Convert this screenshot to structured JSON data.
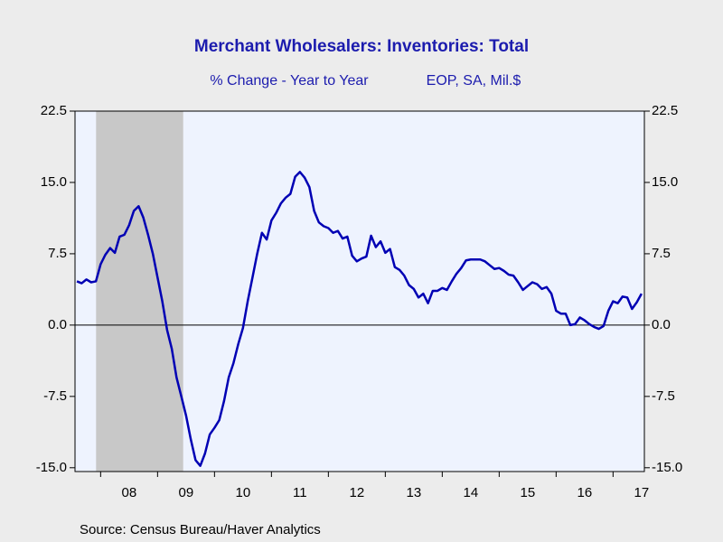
{
  "chart_data": {
    "type": "line",
    "title": "Merchant Wholesalers: Inventories: Total",
    "subtitle": [
      "% Change - Year to Year",
      "EOP, SA, Mil.$"
    ],
    "source": "Source:  Census Bureau/Haver Analytics",
    "x": [
      2007.583,
      2007.667,
      2007.75,
      2007.833,
      2007.917,
      2008,
      2008.083,
      2008.167,
      2008.25,
      2008.333,
      2008.417,
      2008.5,
      2008.583,
      2008.667,
      2008.75,
      2008.833,
      2008.917,
      2009,
      2009.083,
      2009.167,
      2009.25,
      2009.333,
      2009.417,
      2009.5,
      2009.583,
      2009.667,
      2009.75,
      2009.833,
      2009.917,
      2010,
      2010.083,
      2010.167,
      2010.25,
      2010.333,
      2010.417,
      2010.5,
      2010.583,
      2010.667,
      2010.75,
      2010.833,
      2010.917,
      2011,
      2011.083,
      2011.167,
      2011.25,
      2011.333,
      2011.417,
      2011.5,
      2011.583,
      2011.667,
      2011.75,
      2011.833,
      2011.917,
      2012,
      2012.083,
      2012.167,
      2012.25,
      2012.333,
      2012.417,
      2012.5,
      2012.583,
      2012.667,
      2012.75,
      2012.833,
      2012.917,
      2013,
      2013.083,
      2013.167,
      2013.25,
      2013.333,
      2013.417,
      2013.5,
      2013.583,
      2013.667,
      2013.75,
      2013.833,
      2013.917,
      2014,
      2014.083,
      2014.167,
      2014.25,
      2014.333,
      2014.417,
      2014.5,
      2014.583,
      2014.667,
      2014.75,
      2014.833,
      2014.917,
      2015,
      2015.083,
      2015.167,
      2015.25,
      2015.333,
      2015.417,
      2015.5,
      2015.583,
      2015.667,
      2015.75,
      2015.833,
      2015.917,
      2016,
      2016.083,
      2016.167,
      2016.25,
      2016.333,
      2016.417,
      2016.5,
      2016.583,
      2016.667,
      2016.75,
      2016.833,
      2016.917,
      2017,
      2017.083,
      2017.167,
      2017.25,
      2017.333,
      2017.417,
      2017.5
    ],
    "series": [
      {
        "color": "#0000b4",
        "values": [
          4.6,
          4.4,
          4.8,
          4.5,
          4.6,
          6.4,
          7.4,
          8.1,
          7.6,
          9.3,
          9.5,
          10.5,
          12.0,
          12.5,
          11.3,
          9.5,
          7.5,
          5.0,
          2.5,
          -0.5,
          -2.5,
          -5.5,
          -7.5,
          -9.5,
          -12,
          -14.2,
          -14.8,
          -13.5,
          -11.5,
          -10.8,
          -10,
          -8,
          -5.5,
          -4,
          -2,
          -0.3,
          2.5,
          5,
          7.5,
          9.7,
          9.0,
          11,
          11.8,
          12.8,
          13.4,
          13.8,
          15.6,
          16.1,
          15.5,
          14.5,
          12,
          10.8,
          10.4,
          10.2,
          9.7,
          9.9,
          9.1,
          9.3,
          7.3,
          6.7,
          7,
          7.2,
          9.4,
          8.2,
          8.8,
          7.6,
          8,
          6.1,
          5.8,
          5.2,
          4.2,
          3.8,
          2.9,
          3.3,
          2.3,
          3.6,
          3.6,
          3.9,
          3.7,
          4.6,
          5.4,
          6.0,
          6.8,
          6.9,
          6.9,
          6.9,
          6.7,
          6.3,
          5.9,
          6.0,
          5.7,
          5.3,
          5.2,
          4.5,
          3.7,
          4.1,
          4.5,
          4.3,
          3.8,
          4.0,
          3.3,
          1.5,
          1.2,
          1.2,
          0.0,
          0.1,
          0.8,
          0.5,
          0.1,
          -0.2,
          -0.4,
          -0.1,
          1.5,
          2.5,
          2.3,
          3.0,
          2.9,
          1.7,
          2.4,
          3.3
        ]
      }
    ],
    "xlim": [
      2007.55,
      2017.55
    ],
    "xticks": [
      {
        "value": 2008.5,
        "label": "08"
      },
      {
        "value": 2009.5,
        "label": "09"
      },
      {
        "value": 2010.5,
        "label": "10"
      },
      {
        "value": 2011.5,
        "label": "11"
      },
      {
        "value": 2012.5,
        "label": "12"
      },
      {
        "value": 2013.5,
        "label": "13"
      },
      {
        "value": 2014.5,
        "label": "14"
      },
      {
        "value": 2015.5,
        "label": "15"
      },
      {
        "value": 2016.5,
        "label": "16"
      },
      {
        "value": 2017.5,
        "label": "17"
      }
    ],
    "ylim": [
      -15.4,
      22.5
    ],
    "yticks": [
      22.5,
      {
        "value": 15,
        "label": "15.0"
      },
      7.5,
      {
        "value": 0,
        "label": "0.0"
      },
      -7.5,
      {
        "value": -15,
        "label": "-15.0"
      }
    ],
    "recession": [
      2007.92,
      2009.45
    ],
    "recession_color": "#c8c8c8",
    "plot_background": "#eef3fe",
    "zero_line": true
  }
}
